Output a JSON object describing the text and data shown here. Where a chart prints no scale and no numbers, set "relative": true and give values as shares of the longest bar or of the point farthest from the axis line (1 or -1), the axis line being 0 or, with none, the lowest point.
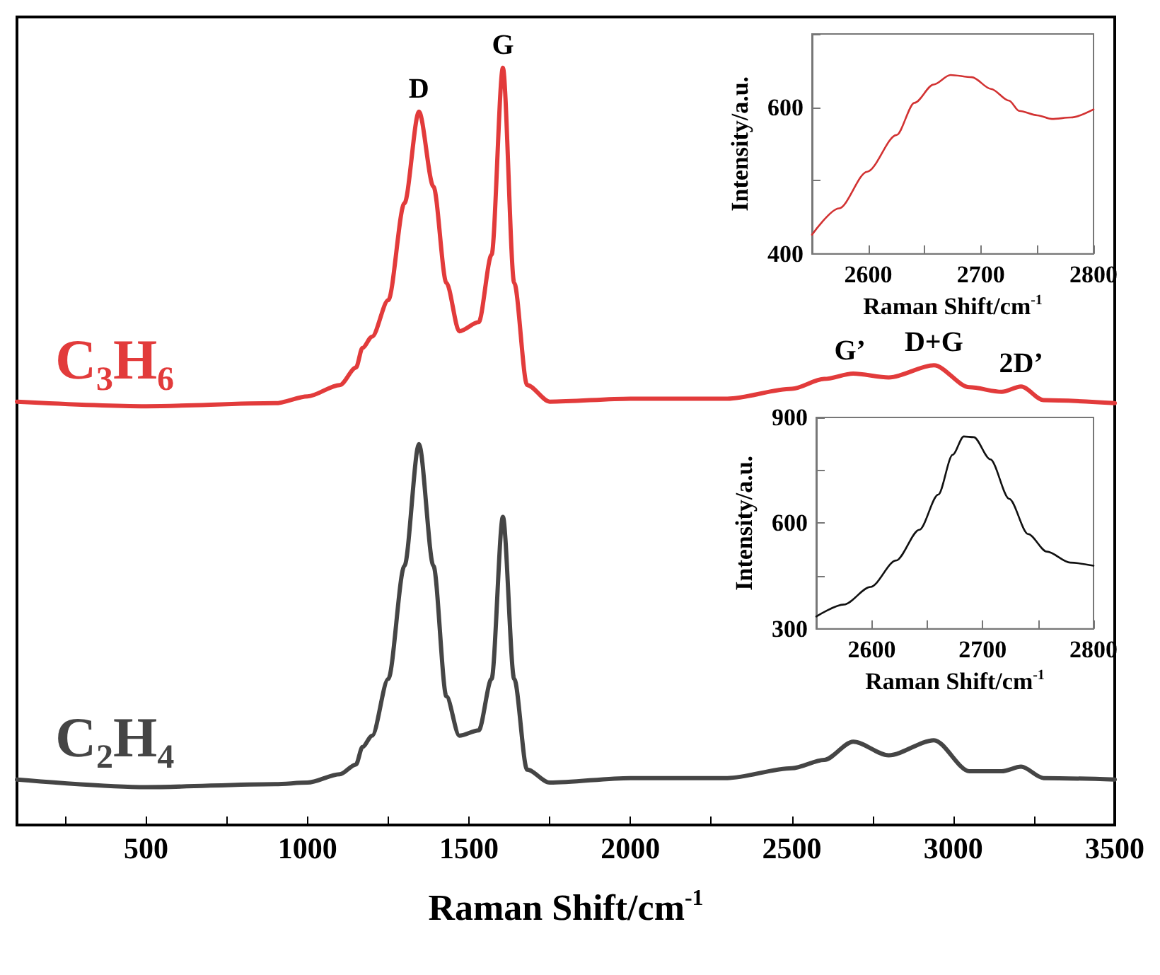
{
  "chart_data": [
    {
      "type": "line",
      "relative": true,
      "xlabel": "Raman Shift/cm$^{-1}$",
      "xlim": [
        100,
        3500
      ],
      "xticks": [
        {
          "value": 250,
          "label": null
        },
        500,
        {
          "value": 750,
          "label": null
        },
        1000,
        {
          "value": 1250,
          "label": null
        },
        1500,
        {
          "value": 1750,
          "label": null
        },
        2000,
        {
          "value": 2250,
          "label": null
        },
        2500,
        {
          "value": 2750,
          "label": null
        },
        3000,
        {
          "value": 3250,
          "label": null
        },
        3500
      ],
      "tick_labels": "x",
      "grid": false,
      "legend": false,
      "marker": "none",
      "line_style": "solid",
      "x": [
        100,
        500,
        900,
        1000,
        1100,
        1150,
        1170,
        1200,
        1250,
        1300,
        1345,
        1390,
        1430,
        1470,
        1530,
        1570,
        1605,
        1640,
        1680,
        1750,
        2000,
        2300,
        2500,
        2600,
        2690,
        2800,
        2940,
        3050,
        3150,
        3210,
        3280,
        3500
      ],
      "series": [
        {
          "name": "C₃H₆",
          "color": "#e23b3b",
          "values": [
            0.559,
            0.553,
            0.557,
            0.566,
            0.581,
            0.604,
            0.63,
            0.645,
            0.693,
            0.821,
            0.942,
            0.843,
            0.716,
            0.652,
            0.664,
            0.753,
            1.0,
            0.716,
            0.581,
            0.559,
            0.563,
            0.563,
            0.576,
            0.589,
            0.596,
            0.591,
            0.607,
            0.578,
            0.572,
            0.579,
            0.561,
            0.557
          ]
        },
        {
          "name": "C₂H₄",
          "color": "#454545",
          "values": [
            0.06,
            0.05,
            0.054,
            0.056,
            0.067,
            0.08,
            0.103,
            0.118,
            0.193,
            0.342,
            0.503,
            0.342,
            0.17,
            0.118,
            0.125,
            0.193,
            0.407,
            0.193,
            0.073,
            0.056,
            0.062,
            0.062,
            0.075,
            0.086,
            0.11,
            0.092,
            0.112,
            0.071,
            0.071,
            0.077,
            0.062,
            0.06
          ]
        }
      ],
      "annotations": [
        {
          "text": "D",
          "x": 1345,
          "y": 0.942
        },
        {
          "text": "G",
          "x": 1605,
          "y": 1.0
        },
        {
          "text": "G’",
          "x": 2680,
          "y": 0.596
        },
        {
          "text": "D+G",
          "x": 2940,
          "y": 0.607
        },
        {
          "text": "2D’",
          "x": 3210,
          "y": 0.579
        }
      ]
    },
    {
      "type": "line",
      "xlabel": "Raman Shift/cm$^{-1}$",
      "ylabel": "Intensity/a.u.",
      "xlim": [
        2550,
        2800
      ],
      "xticks": [
        {
          "value": 2550,
          "label": null
        },
        2600,
        {
          "value": 2650,
          "label": null
        },
        2700,
        {
          "value": 2750,
          "label": null
        },
        2800
      ],
      "ylim": [
        400,
        700
      ],
      "yticks": [
        400,
        {
          "value": 500,
          "label": null
        },
        600,
        {
          "value": 700,
          "label": null
        }
      ],
      "grid": false,
      "legend": false,
      "marker": "none",
      "line_style": "solid",
      "x": [
        2550,
        2574,
        2599,
        2625,
        2641,
        2658,
        2673,
        2692,
        2709,
        2725,
        2734,
        2750,
        2763,
        2780,
        2800
      ],
      "series": [
        {
          "color": "#d23232",
          "values": [
            426,
            462,
            512,
            562,
            606,
            631,
            644,
            641,
            625,
            609,
            595,
            589,
            584,
            586,
            597
          ]
        }
      ]
    },
    {
      "type": "line",
      "xlabel": "Raman Shift/cm$^{-1}$",
      "ylabel": "Intensity/a.u.",
      "xlim": [
        2550,
        2800
      ],
      "xticks": [
        {
          "value": 2550,
          "label": null
        },
        2600,
        {
          "value": 2650,
          "label": null
        },
        2700,
        {
          "value": 2750,
          "label": null
        },
        2800
      ],
      "ylim": [
        300,
        900
      ],
      "yticks": [
        300,
        {
          "value": 450,
          "label": null
        },
        600,
        {
          "value": 750,
          "label": null
        },
        900
      ],
      "grid": false,
      "legend": false,
      "marker": "none",
      "line_style": "solid",
      "x": [
        2550,
        2575,
        2599,
        2622,
        2643,
        2660,
        2673,
        2683,
        2692,
        2707,
        2724,
        2741,
        2758,
        2779,
        2800
      ],
      "series": [
        {
          "color": "#111111",
          "values": [
            335,
            369,
            419,
            494,
            581,
            681,
            794,
            846,
            844,
            781,
            669,
            569,
            519,
            488,
            479
          ]
        }
      ]
    }
  ]
}
